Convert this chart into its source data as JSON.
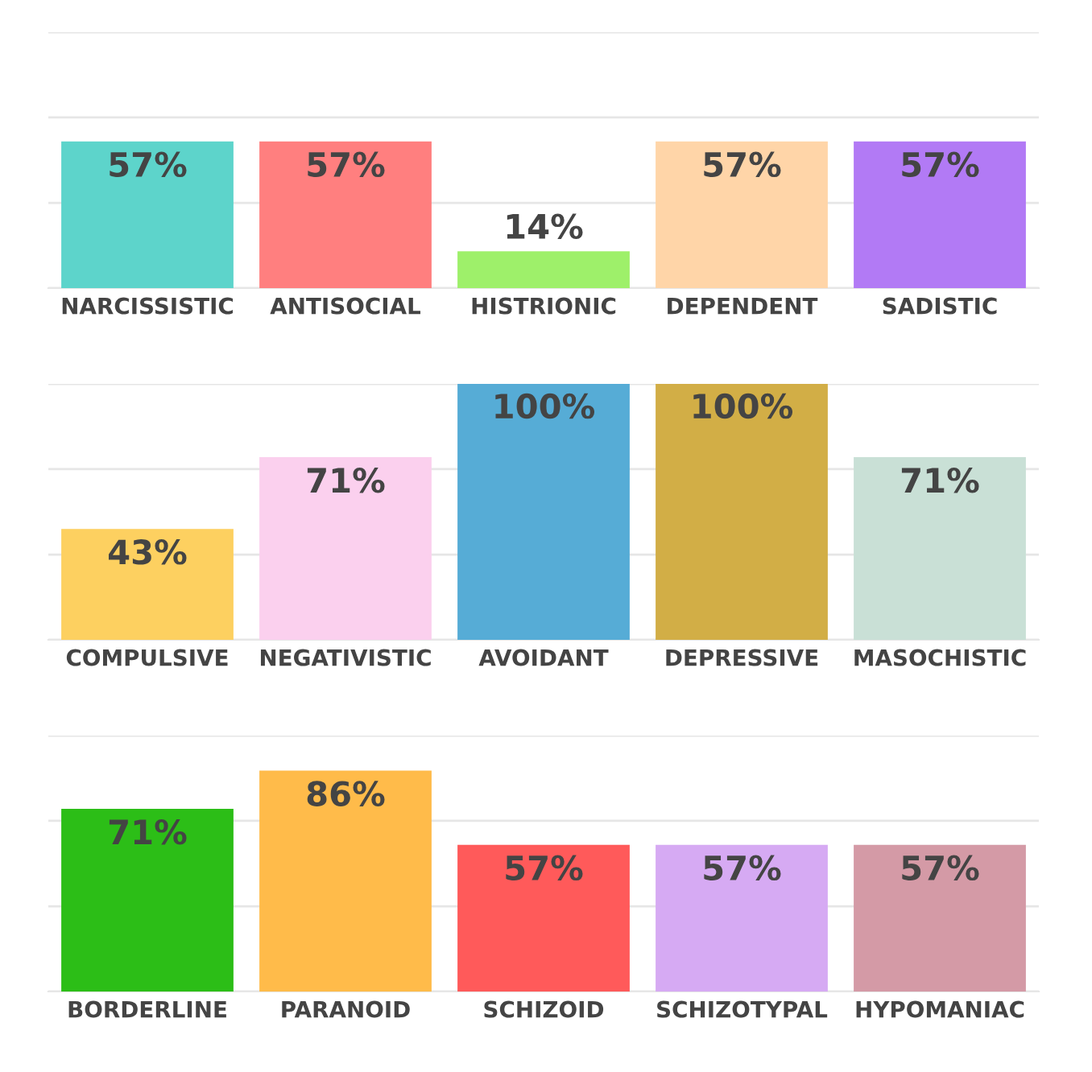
{
  "chart_data": [
    {
      "type": "bar",
      "categories": [
        "NARCISSISTIC",
        "ANTISOCIAL",
        "HISTRIONIC",
        "DEPENDENT",
        "SADISTIC"
      ],
      "values": [
        57,
        57,
        14,
        57,
        57
      ],
      "colors": [
        "#5dd4cb",
        "#ff7f7f",
        "#9ef06a",
        "#ffd5a8",
        "#b27af5"
      ],
      "value_labels": [
        "57%",
        "57%",
        "14%",
        "57%",
        "57%"
      ],
      "ylim": [
        0,
        100
      ],
      "yticks": [
        {
          "value": 0,
          "label": null
        },
        {
          "value": 33.3,
          "label": null
        },
        {
          "value": 66.7,
          "label": null
        },
        {
          "value": 100,
          "label": null
        }
      ],
      "grid": "y",
      "tick_labels": "x"
    },
    {
      "type": "bar",
      "categories": [
        "COMPULSIVE",
        "NEGATIVISTIC",
        "AVOIDANT",
        "DEPRESSIVE",
        "MASOCHISTIC"
      ],
      "values": [
        43,
        71,
        100,
        100,
        71
      ],
      "colors": [
        "#fdd060",
        "#fbd0ee",
        "#56acd6",
        "#d2ae46",
        "#c9e0d6"
      ],
      "value_labels": [
        "43%",
        "71%",
        "100%",
        "100%",
        "71%"
      ],
      "ylim": [
        0,
        100
      ],
      "yticks": [
        {
          "value": 0,
          "label": null
        },
        {
          "value": 33.3,
          "label": null
        },
        {
          "value": 66.7,
          "label": null
        },
        {
          "value": 100,
          "label": null
        }
      ],
      "grid": "y",
      "tick_labels": "x"
    },
    {
      "type": "bar",
      "categories": [
        "BORDERLINE",
        "PARANOID",
        "SCHIZOID",
        "SCHIZOTYPAL",
        "HYPOMANIAC"
      ],
      "values": [
        71,
        86,
        57,
        57,
        57
      ],
      "colors": [
        "#2cbe17",
        "#ffbb4a",
        "#ff5a5a",
        "#d6aaf3",
        "#d49aa6"
      ],
      "value_labels": [
        "71%",
        "86%",
        "57%",
        "57%",
        "57%"
      ],
      "ylim": [
        0,
        100
      ],
      "yticks": [
        {
          "value": 0,
          "label": null
        },
        {
          "value": 33.3,
          "label": null
        },
        {
          "value": 66.7,
          "label": null
        },
        {
          "value": 100,
          "label": null
        }
      ],
      "grid": "y",
      "tick_labels": "x"
    }
  ]
}
